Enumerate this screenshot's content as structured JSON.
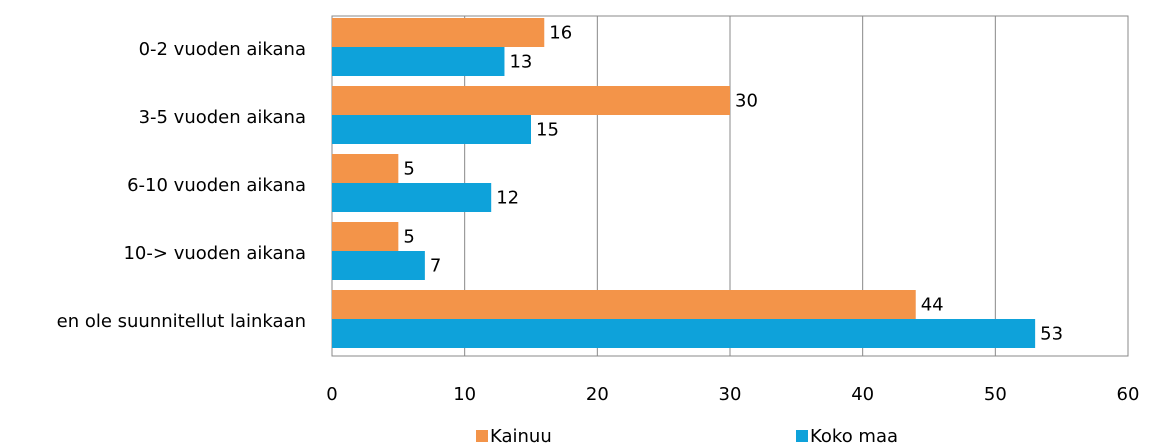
{
  "chart_data": {
    "type": "bar",
    "orientation": "horizontal",
    "categories": [
      "0-2 vuoden aikana",
      "3-5 vuoden aikana",
      "6-10 vuoden aikana",
      "10-> vuoden aikana",
      "en ole suunnitellut lainkaan"
    ],
    "series": [
      {
        "name": "Kainuu",
        "color": "#f39449",
        "values": [
          16,
          30,
          5,
          5,
          44
        ]
      },
      {
        "name": "Koko maa",
        "color": "#0ea2da",
        "values": [
          13,
          15,
          12,
          7,
          53
        ]
      }
    ],
    "xlim": [
      0,
      60
    ],
    "xticks": [
      0,
      10,
      20,
      30,
      40,
      50,
      60
    ],
    "grid": true,
    "legend": "bottom"
  }
}
